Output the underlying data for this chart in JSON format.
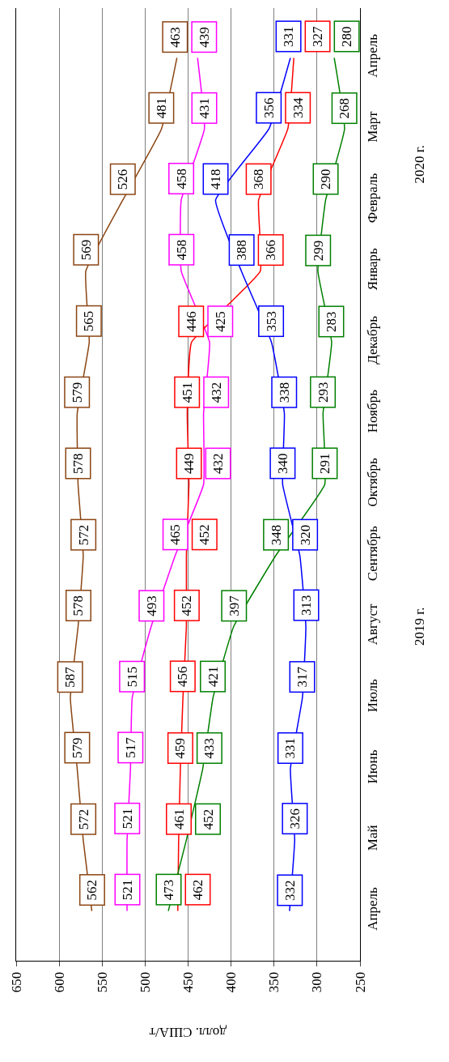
{
  "chart_data": {
    "type": "line",
    "orientation": "horizontal",
    "xlabel": "долл. США/т",
    "categories": [
      "Апрель",
      "Март",
      "Февраль",
      "Январь",
      "Декабрь",
      "Ноябрь",
      "Октябрь",
      "Сентябрь",
      "Август",
      "Июль",
      "Июнь",
      "Май",
      "Апрель"
    ],
    "series": [
      {
        "color": "#8b4513",
        "values": [
          463,
          481,
          526,
          569,
          565,
          579,
          578,
          572,
          578,
          587,
          579,
          572,
          562
        ]
      },
      {
        "color": "#ff00ff",
        "values": [
          439,
          431,
          458,
          458,
          425,
          432,
          432,
          465,
          493,
          515,
          517,
          521,
          521
        ]
      },
      {
        "color": "#ff0000",
        "values": [
          327,
          334,
          368,
          366,
          446,
          451,
          449,
          452,
          452,
          456,
          459,
          461,
          462
        ]
      },
      {
        "color": "#008000",
        "values": [
          280,
          268,
          290,
          299,
          283,
          293,
          291,
          348,
          397,
          421,
          433,
          452,
          473
        ]
      },
      {
        "color": "#0000ff",
        "values": [
          331,
          356,
          418,
          388,
          353,
          338,
          340,
          320,
          313,
          317,
          331,
          326,
          332
        ]
      }
    ],
    "xlim": [
      650,
      250
    ],
    "xticks": [
      650,
      600,
      550,
      500,
      450,
      400,
      350,
      300,
      250
    ],
    "grid": "x",
    "data_labels": true,
    "annotations": [
      "2019 г.",
      "2020 г."
    ]
  }
}
